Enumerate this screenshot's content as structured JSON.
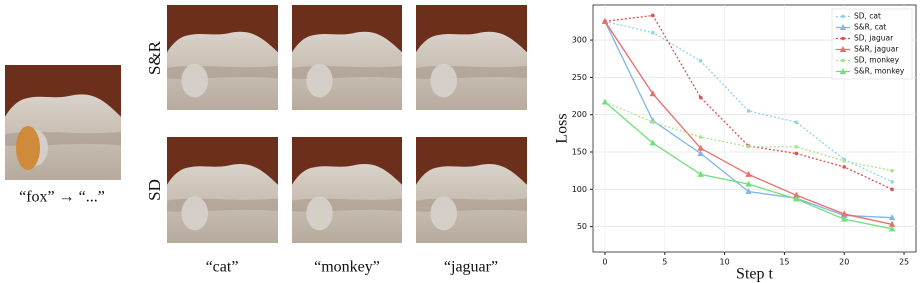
{
  "figure": {
    "source_caption": "“fox” → “...”",
    "row_labels": [
      "S&R",
      "SD"
    ],
    "column_labels": [
      "“cat”",
      "“monkey”",
      "“jaguar”"
    ]
  },
  "chart_data": {
    "type": "line",
    "x_label": "Step t",
    "y_label": "Loss",
    "x": [
      0,
      4,
      8,
      12,
      16,
      20,
      24
    ],
    "xlim": [
      -1,
      26
    ],
    "xticks": [
      0,
      5,
      10,
      15,
      20,
      25
    ],
    "ylim": [
      16,
      347
    ],
    "yticks": [
      50,
      100,
      150,
      200,
      250,
      300
    ],
    "grid": true,
    "legend": "upper right",
    "series": [
      {
        "name": "SD, cat",
        "color": "#8fd3e8",
        "style": "dotted",
        "marker": "circle",
        "values": [
          325,
          310,
          272,
          205,
          190,
          140,
          110
        ]
      },
      {
        "name": "S&R, cat",
        "color": "#7fb7e6",
        "style": "solid",
        "marker": "triangle",
        "values": [
          325,
          192,
          148,
          97,
          88,
          65,
          62
        ]
      },
      {
        "name": "SD, jaguar",
        "color": "#e0504f",
        "style": "dotted",
        "marker": "circle",
        "values": [
          325,
          333,
          223,
          158,
          148,
          130,
          100
        ]
      },
      {
        "name": "S&R, jaguar",
        "color": "#ec6b6b",
        "style": "solid",
        "marker": "triangle",
        "values": [
          325,
          228,
          155,
          120,
          92,
          67,
          53
        ]
      },
      {
        "name": "SD, monkey",
        "color": "#a8e48a",
        "style": "dotted",
        "marker": "circle",
        "values": [
          217,
          190,
          170,
          157,
          157,
          138,
          125
        ]
      },
      {
        "name": "S&R, monkey",
        "color": "#72e07a",
        "style": "solid",
        "marker": "triangle",
        "values": [
          217,
          162,
          120,
          107,
          87,
          60,
          47
        ]
      }
    ]
  }
}
